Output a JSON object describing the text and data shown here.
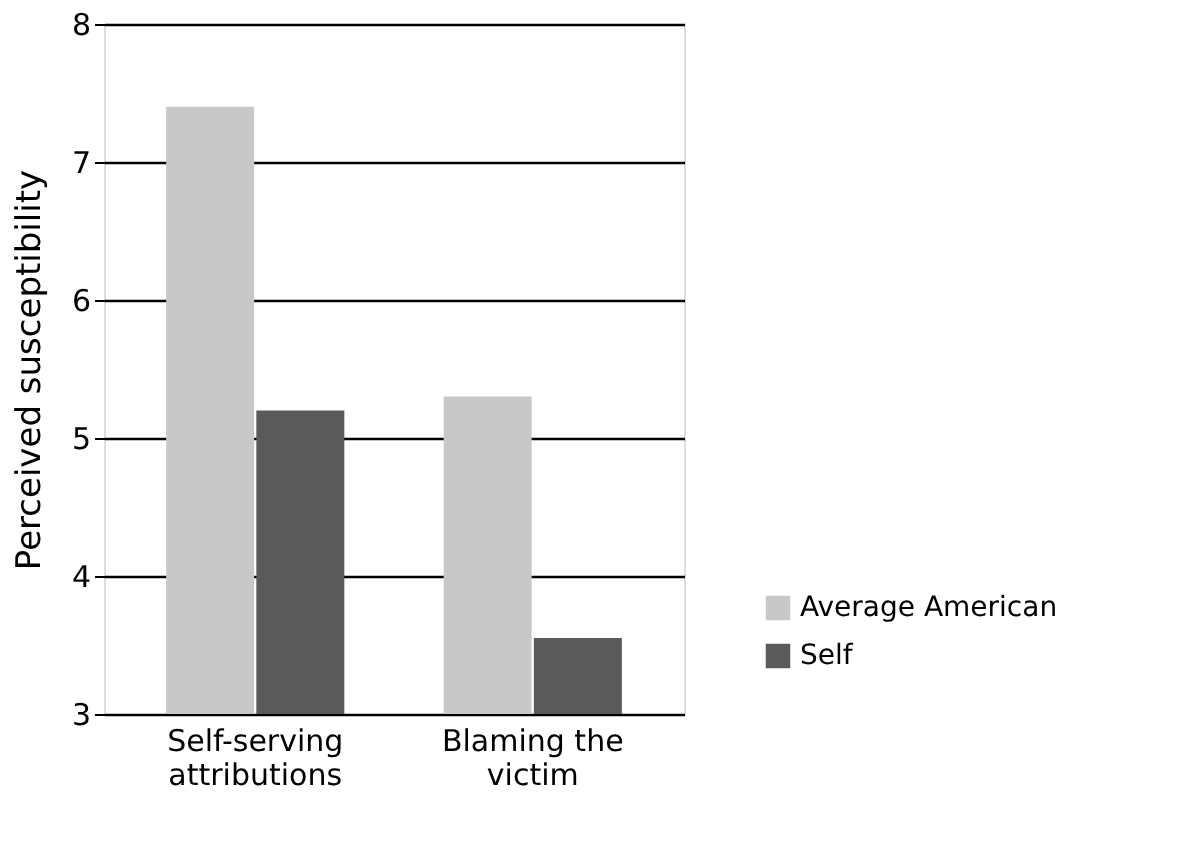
{
  "chart_data": {
    "type": "bar",
    "ylabel": "Perceived susceptibility",
    "categories": [
      "Self-serving attributions",
      "Blaming the victim"
    ],
    "series": [
      {
        "name": "Average American",
        "color": "#c8c8c8",
        "values": [
          7.4,
          5.3
        ]
      },
      {
        "name": "Self",
        "color": "#5a5a5a",
        "values": [
          5.2,
          3.55
        ]
      }
    ],
    "ylim": [
      3,
      8
    ],
    "yticks": [
      3,
      4,
      5,
      6,
      7,
      8
    ],
    "grid": "y",
    "legend": "bottom right"
  }
}
